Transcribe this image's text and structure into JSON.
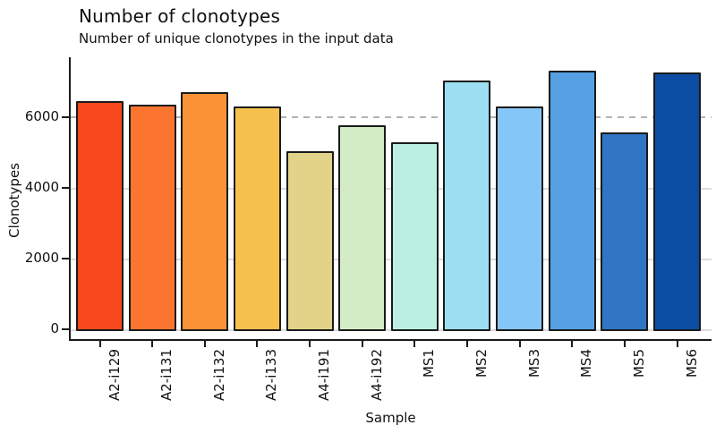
{
  "header": {
    "title": "Number of clonotypes",
    "subtitle": "Number of unique clonotypes in the input data"
  },
  "chart_data": {
    "type": "bar",
    "title": "Number of clonotypes",
    "subtitle": "Number of unique clonotypes in the input data",
    "xlabel": "Sample",
    "ylabel": "Clonotypes",
    "categories": [
      "A2-i129",
      "A2-i131",
      "A2-i132",
      "A2-i133",
      "A4-i191",
      "A4-i192",
      "MS1",
      "MS2",
      "MS3",
      "MS4",
      "MS5",
      "MS6"
    ],
    "values": [
      6460,
      6350,
      6710,
      6300,
      5040,
      5770,
      5290,
      7040,
      6310,
      7310,
      5570,
      7260
    ],
    "bar_colors": [
      "#F9481D",
      "#FB7530",
      "#FB9336",
      "#F7C14F",
      "#E1D489",
      "#D4ECC6",
      "#BCEFE3",
      "#9CDFF3",
      "#85C6F9",
      "#56A0E3",
      "#3076C5",
      "#0C4DA4"
    ],
    "yticks": [
      0,
      2000,
      4000,
      6000
    ],
    "ylim": [
      0,
      7700
    ],
    "grid": "solid light horizontal lines at 0, 2000, 4000",
    "reference_line": {
      "value": 6000,
      "style": "dashed",
      "color": "#b3b3b3"
    },
    "legend": "none",
    "axis_color": "#1a1a1a",
    "grid_color": "#dcdcdc",
    "bar_border_color": "#1a1a1a"
  }
}
